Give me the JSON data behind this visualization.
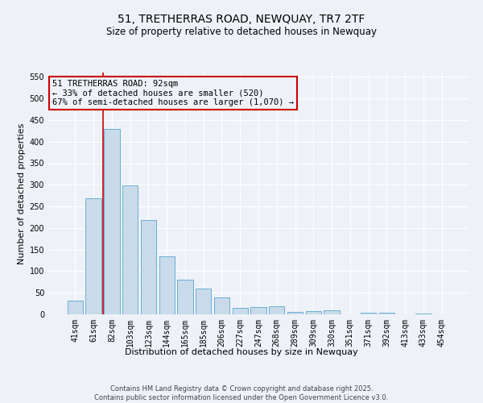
{
  "title": "51, TRETHERRAS ROAD, NEWQUAY, TR7 2TF",
  "subtitle": "Size of property relative to detached houses in Newquay",
  "xlabel": "Distribution of detached houses by size in Newquay",
  "ylabel": "Number of detached properties",
  "categories": [
    "41sqm",
    "61sqm",
    "82sqm",
    "103sqm",
    "123sqm",
    "144sqm",
    "165sqm",
    "185sqm",
    "206sqm",
    "227sqm",
    "247sqm",
    "268sqm",
    "289sqm",
    "309sqm",
    "330sqm",
    "351sqm",
    "371sqm",
    "392sqm",
    "413sqm",
    "433sqm",
    "454sqm"
  ],
  "values": [
    32,
    268,
    430,
    298,
    218,
    135,
    80,
    60,
    40,
    15,
    17,
    18,
    5,
    8,
    9,
    0,
    4,
    3,
    0,
    1,
    0
  ],
  "bar_color": "#c9daea",
  "bar_edge_color": "#6aafd6",
  "bar_edge_width": 0.7,
  "property_line_x": 1.5,
  "property_line_color": "#cc0000",
  "annotation_text": "51 TRETHERRAS ROAD: 92sqm\n← 33% of detached houses are smaller (520)\n67% of semi-detached houses are larger (1,070) →",
  "annotation_box_color": "#cc0000",
  "ylim": [
    0,
    560
  ],
  "yticks": [
    0,
    50,
    100,
    150,
    200,
    250,
    300,
    350,
    400,
    450,
    500,
    550
  ],
  "background_color": "#eef2f8",
  "grid_color": "#ffffff",
  "footer": "Contains HM Land Registry data © Crown copyright and database right 2025.\nContains public sector information licensed under the Open Government Licence v3.0.",
  "title_fontsize": 10,
  "subtitle_fontsize": 8.5,
  "ylabel_fontsize": 8,
  "xlabel_fontsize": 8,
  "tick_fontsize": 7,
  "footer_fontsize": 6,
  "ann_fontsize": 7.5
}
